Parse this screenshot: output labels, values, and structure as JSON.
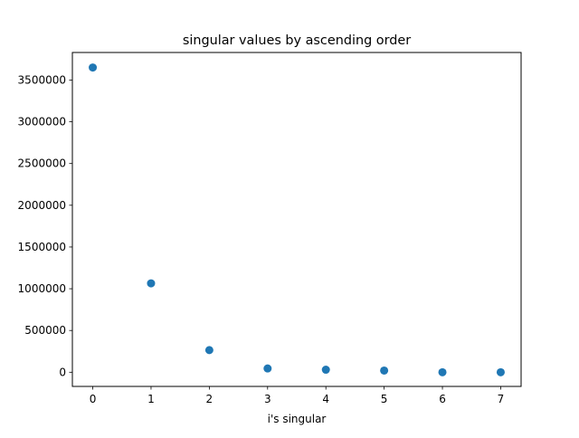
{
  "chart_data": {
    "type": "scatter",
    "title": "singular values by ascending order",
    "xlabel": "i's singular",
    "ylabel": "",
    "xlim": [
      -0.35,
      7.35
    ],
    "ylim": [
      -170000,
      3830000
    ],
    "x_ticks": [
      0,
      1,
      2,
      3,
      4,
      5,
      6,
      7
    ],
    "y_ticks": [
      0,
      500000,
      1000000,
      1500000,
      2000000,
      2500000,
      3000000,
      3500000
    ],
    "x_tick_labels": [
      "0",
      "1",
      "2",
      "3",
      "4",
      "5",
      "6",
      "7"
    ],
    "y_tick_labels": [
      "0",
      "500000",
      "1000000",
      "1500000",
      "2000000",
      "2500000",
      "3000000",
      "3500000"
    ],
    "grid": false,
    "series": [
      {
        "x": [
          0,
          1,
          2,
          3,
          4,
          5,
          6,
          7
        ],
        "values": [
          3650000,
          1065000,
          265000,
          45000,
          30000,
          20000,
          0,
          0
        ],
        "color": "#1f77b4"
      }
    ]
  }
}
